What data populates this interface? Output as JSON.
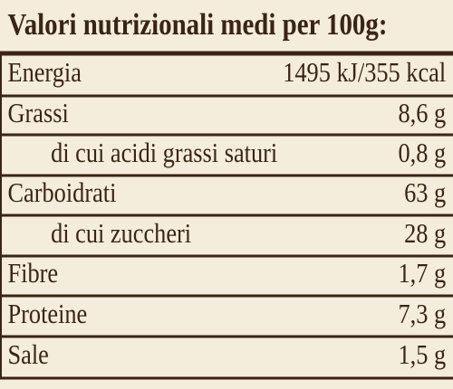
{
  "table": {
    "title": "Valori nutrizionali medi per 100g:",
    "rows": [
      [
        "Energia",
        "1495 kJ/355 kcal"
      ],
      [
        "Grassi",
        "8,6 g"
      ],
      [
        "di cui acidi grassi saturi",
        "0,8 g"
      ],
      [
        "Carboidrati",
        "63 g"
      ],
      [
        "di cui zuccheri",
        "28 g"
      ],
      [
        "Fibre",
        "1,7 g"
      ],
      [
        "Proteine",
        "7,3 g"
      ],
      [
        "Sale",
        "1,5 g"
      ]
    ]
  }
}
